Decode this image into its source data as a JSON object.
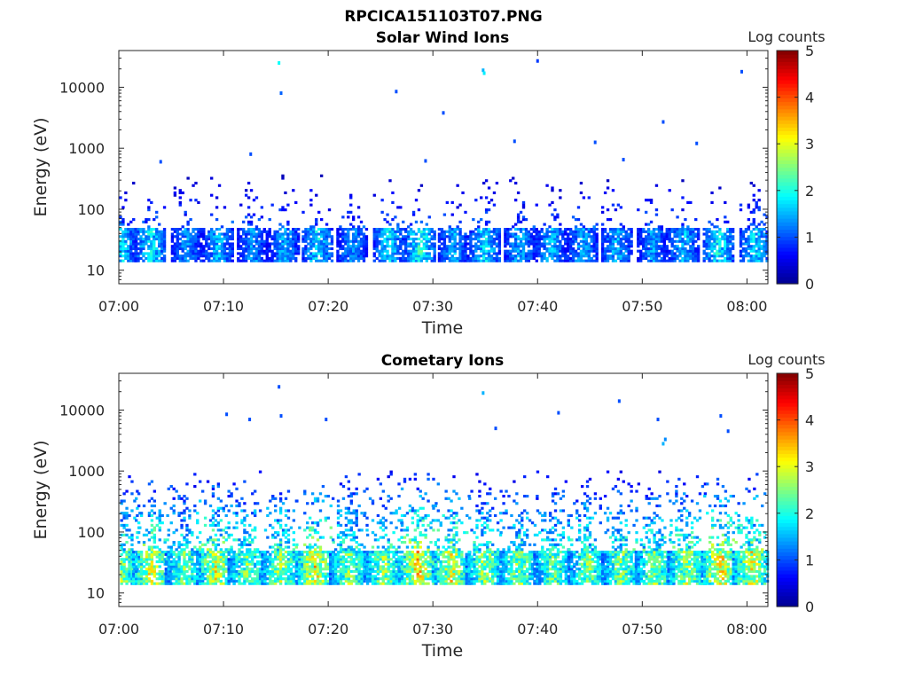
{
  "figure_title": "RPCICA151103T07.PNG",
  "colormap": [
    "#00008f",
    "#0000ff",
    "#0080ff",
    "#00ffff",
    "#80ff80",
    "#ffff00",
    "#ff8000",
    "#ff0000",
    "#800000"
  ],
  "chart_data": [
    {
      "type": "heatmap",
      "title": "Solar Wind Ions",
      "xlabel": "Time",
      "ylabel": "Energy (eV)",
      "x_range": [
        "07:00",
        "08:02"
      ],
      "x_ticks": [
        "07:00",
        "07:10",
        "07:20",
        "07:30",
        "07:40",
        "07:50",
        "08:00"
      ],
      "y_scale": "log",
      "y_range": [
        6,
        40000
      ],
      "y_ticks": [
        "10",
        "100",
        "1000",
        "10000"
      ],
      "colorbar": {
        "label": "Log counts",
        "min": 0,
        "max": 5,
        "ticks": [
          "0",
          "1",
          "2",
          "3",
          "4",
          "5"
        ]
      },
      "bursts": [
        {
          "t": 0.3,
          "peak": 1.9
        },
        {
          "t": 3.0,
          "peak": 2.1
        },
        {
          "t": 6.5,
          "peak": 1.6
        },
        {
          "t": 9.5,
          "peak": 1.8
        },
        {
          "t": 12.8,
          "peak": 1.6
        },
        {
          "t": 15.8,
          "peak": 1.7
        },
        {
          "t": 19.0,
          "peak": 2.0
        },
        {
          "t": 22.3,
          "peak": 1.6
        },
        {
          "t": 25.8,
          "peak": 2.0
        },
        {
          "t": 28.8,
          "peak": 2.3
        },
        {
          "t": 32.0,
          "peak": 1.7
        },
        {
          "t": 35.0,
          "peak": 2.0
        },
        {
          "t": 38.3,
          "peak": 1.7
        },
        {
          "t": 41.3,
          "peak": 1.8
        },
        {
          "t": 44.3,
          "peak": 1.7
        },
        {
          "t": 47.6,
          "peak": 1.8
        },
        {
          "t": 51.0,
          "peak": 1.6
        },
        {
          "t": 54.0,
          "peak": 1.8
        },
        {
          "t": 57.3,
          "peak": 2.2
        },
        {
          "t": 60.8,
          "peak": 2.0
        }
      ],
      "sparse_points": [
        {
          "t": 15.3,
          "e": 25000,
          "v": 1.9
        },
        {
          "t": 15.5,
          "e": 8000,
          "v": 1.1
        },
        {
          "t": 26.5,
          "e": 8500,
          "v": 1.0
        },
        {
          "t": 31.0,
          "e": 3800,
          "v": 1.0
        },
        {
          "t": 34.8,
          "e": 19000,
          "v": 1.5
        },
        {
          "t": 34.9,
          "e": 17000,
          "v": 1.8
        },
        {
          "t": 40.0,
          "e": 27000,
          "v": 0.9
        },
        {
          "t": 52.0,
          "e": 2700,
          "v": 1.0
        },
        {
          "t": 59.5,
          "e": 18000,
          "v": 1.0
        },
        {
          "t": 37.8,
          "e": 1300,
          "v": 1.0
        },
        {
          "t": 45.5,
          "e": 1250,
          "v": 1.0
        },
        {
          "t": 55.2,
          "e": 1200,
          "v": 1.0
        },
        {
          "t": 12.6,
          "e": 800,
          "v": 1.0
        },
        {
          "t": 4.0,
          "e": 600,
          "v": 1.0
        },
        {
          "t": 29.3,
          "e": 620,
          "v": 1.0
        },
        {
          "t": 48.2,
          "e": 650,
          "v": 1.0
        }
      ]
    },
    {
      "type": "heatmap",
      "title": "Cometary Ions",
      "xlabel": "Time",
      "ylabel": "Energy (eV)",
      "x_range": [
        "07:00",
        "08:02"
      ],
      "x_ticks": [
        "07:00",
        "07:10",
        "07:20",
        "07:30",
        "07:40",
        "07:50",
        "08:00"
      ],
      "y_scale": "log",
      "y_range": [
        6,
        40000
      ],
      "y_ticks": [
        "10",
        "100",
        "1000",
        "10000"
      ],
      "colorbar": {
        "label": "Log counts",
        "min": 0,
        "max": 5,
        "ticks": [
          "0",
          "1",
          "2",
          "3",
          "4",
          "5"
        ]
      },
      "bursts": [
        {
          "t": 0.3,
          "peak": 3.0
        },
        {
          "t": 3.2,
          "peak": 3.5
        },
        {
          "t": 6.3,
          "peak": 2.8
        },
        {
          "t": 9.3,
          "peak": 3.4
        },
        {
          "t": 12.3,
          "peak": 2.9
        },
        {
          "t": 15.5,
          "peak": 3.1
        },
        {
          "t": 18.8,
          "peak": 3.6
        },
        {
          "t": 22.0,
          "peak": 2.9
        },
        {
          "t": 25.3,
          "peak": 3.0
        },
        {
          "t": 28.6,
          "peak": 3.7
        },
        {
          "t": 31.8,
          "peak": 3.4
        },
        {
          "t": 35.0,
          "peak": 3.0
        },
        {
          "t": 38.3,
          "peak": 3.0
        },
        {
          "t": 41.5,
          "peak": 2.8
        },
        {
          "t": 44.8,
          "peak": 2.9
        },
        {
          "t": 48.0,
          "peak": 2.9
        },
        {
          "t": 51.2,
          "peak": 3.0
        },
        {
          "t": 54.3,
          "peak": 3.1
        },
        {
          "t": 57.5,
          "peak": 3.7
        },
        {
          "t": 60.5,
          "peak": 3.4
        }
      ],
      "sparse_points": [
        {
          "t": 15.3,
          "e": 24000,
          "v": 1.0
        },
        {
          "t": 34.8,
          "e": 19000,
          "v": 1.5
        },
        {
          "t": 10.3,
          "e": 8500,
          "v": 1.0
        },
        {
          "t": 12.5,
          "e": 7000,
          "v": 1.0
        },
        {
          "t": 15.5,
          "e": 8000,
          "v": 1.0
        },
        {
          "t": 19.8,
          "e": 7000,
          "v": 1.0
        },
        {
          "t": 36.0,
          "e": 5000,
          "v": 1.0
        },
        {
          "t": 42.0,
          "e": 9000,
          "v": 1.0
        },
        {
          "t": 47.8,
          "e": 14000,
          "v": 1.0
        },
        {
          "t": 51.5,
          "e": 7000,
          "v": 1.0
        },
        {
          "t": 57.5,
          "e": 8000,
          "v": 1.0
        },
        {
          "t": 58.2,
          "e": 4500,
          "v": 1.0
        },
        {
          "t": 52.0,
          "e": 2800,
          "v": 1.5
        },
        {
          "t": 52.2,
          "e": 3300,
          "v": 1.3
        }
      ]
    }
  ]
}
